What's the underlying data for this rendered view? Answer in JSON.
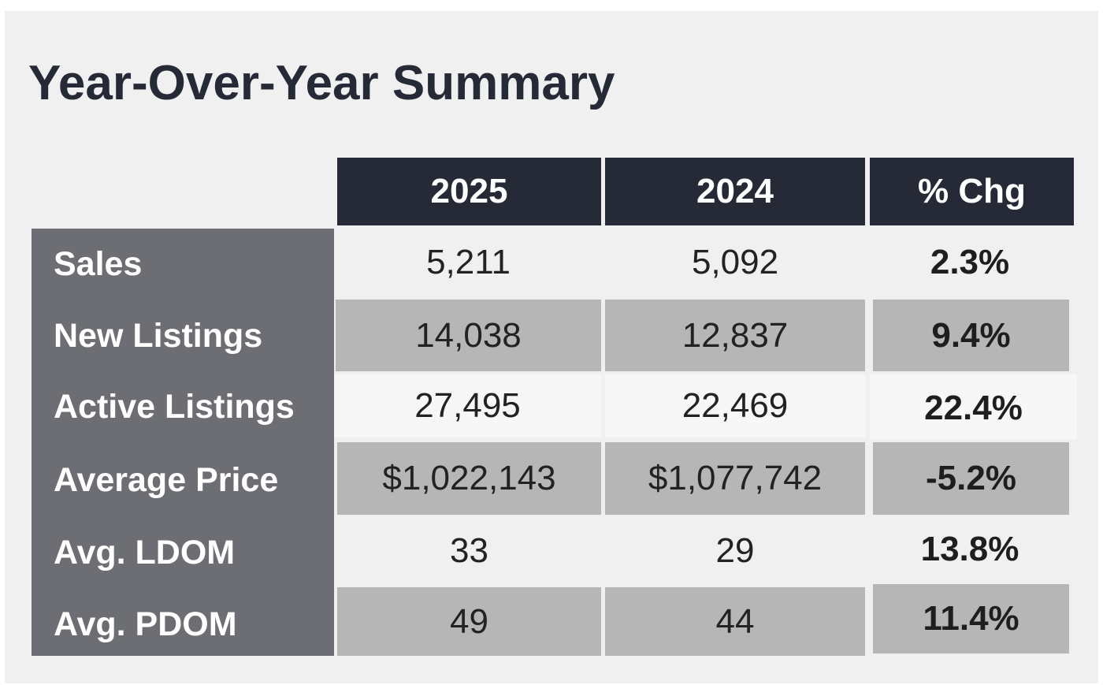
{
  "title": "Year-Over-Year Summary",
  "colors": {
    "header_bg": "#262a37",
    "label_bg": "#6d6e73",
    "row_light": "#f0f0f0",
    "row_dark": "#b6b6b6"
  },
  "chart_data": {
    "type": "table",
    "title": "Year-Over-Year Summary",
    "columns": [
      "",
      "2025",
      "2024",
      "% Chg"
    ],
    "rows": [
      {
        "label": "Sales",
        "y2025": "5,211",
        "y2024": "5,092",
        "chg": "2.3%"
      },
      {
        "label": "New Listings",
        "y2025": "14,038",
        "y2024": "12,837",
        "chg": "9.4%"
      },
      {
        "label": "Active Listings",
        "y2025": "27,495",
        "y2024": "22,469",
        "chg": "22.4%"
      },
      {
        "label": "Average Price",
        "y2025": "$1,022,143",
        "y2024": "$1,077,742",
        "chg": "-5.2%"
      },
      {
        "label": "Avg. LDOM",
        "y2025": "33",
        "y2024": "29",
        "chg": "13.8%"
      },
      {
        "label": "Avg. PDOM",
        "y2025": "49",
        "y2024": "44",
        "chg": "11.4%"
      }
    ]
  }
}
